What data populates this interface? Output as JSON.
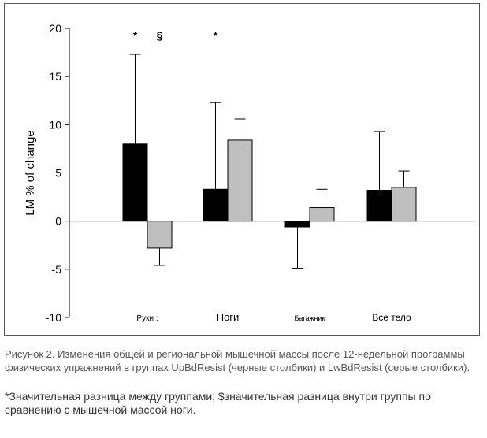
{
  "chart_data": {
    "type": "bar",
    "ylabel": "LM % of change",
    "xlabel": "",
    "ylim": [
      -10,
      20
    ],
    "yticks": [
      -10,
      -5,
      0,
      5,
      10,
      15,
      20
    ],
    "categories": [
      "Руки :",
      "Ноги",
      "Багажник",
      "Все тело"
    ],
    "series": [
      {
        "name": "UpBdResist",
        "color": "#000000",
        "values": [
          8.0,
          3.3,
          -0.6,
          3.2
        ],
        "error": [
          9.3,
          9.0,
          4.3,
          6.1
        ]
      },
      {
        "name": "LwBdResist",
        "color": "#bfbfbf",
        "values": [
          -2.8,
          8.4,
          1.4,
          3.5
        ],
        "error": [
          1.8,
          2.2,
          1.9,
          1.7
        ]
      }
    ],
    "annotations": [
      {
        "text": "*",
        "category": 0,
        "bar": 0
      },
      {
        "text": "§",
        "category": 0,
        "bar": 1
      },
      {
        "text": "*",
        "category": 1,
        "bar": 0
      }
    ]
  },
  "caption": {
    "line1": "Рисунок 2. Изменения общей и региональной мышечной массы после 12-недельной программы физических упражнений в группах UpBdResist (черные столбики) и LwBdResist (серые столбики).",
    "line2": "*Значительная разница между группами; $значительная разница внутри группы по сравнению с мышечной массой ноги."
  }
}
